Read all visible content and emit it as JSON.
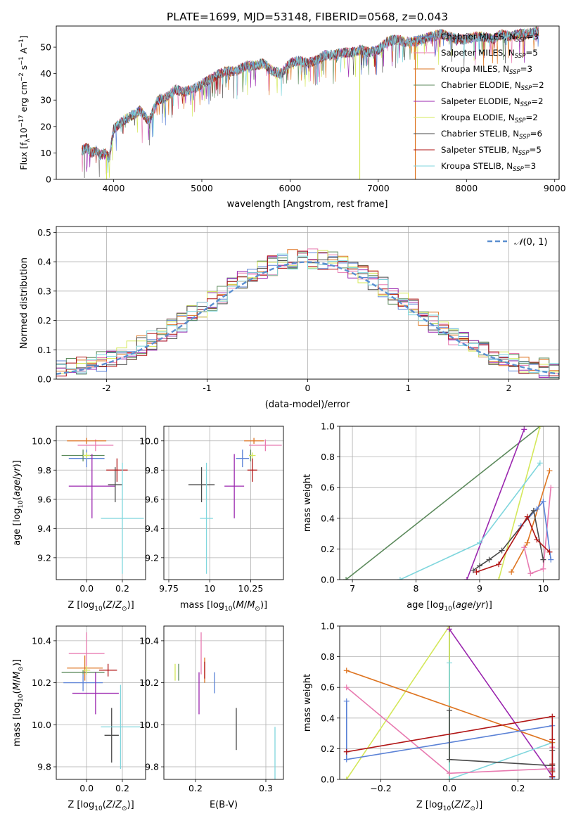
{
  "colors": {
    "chabrier_miles": "#5b82d6",
    "salpeter_miles": "#e87ab0",
    "kroupa_miles": "#de7420",
    "chabrier_elodie": "#5c8a5c",
    "salpeter_elodie": "#9b27af",
    "kroupa_elodie": "#d4e85a",
    "chabrier_stelib": "#4a4a4a",
    "salpeter_stelib": "#b01414",
    "kroupa_stelib": "#7fd6dd",
    "normal": "#5b8fd0",
    "grid": "#b0b0b0"
  },
  "chart_data": [
    {
      "id": "spectrum",
      "type": "line",
      "title": "PLATE=1699, MJD=53148, FIBERID=0568, z=0.043",
      "xlabel": "wavelength [Angstrom, rest frame]",
      "ylabel": "Flux [fλ10⁻¹⁷ erg cm⁻² s⁻¹ A⁻¹]",
      "xlim": [
        3350,
        9050
      ],
      "ylim": [
        0,
        58
      ],
      "xticks": [
        4000,
        5000,
        6000,
        7000,
        8000,
        9000
      ],
      "yticks": [
        0,
        10,
        20,
        30,
        40,
        50
      ],
      "grid": false,
      "legend_position": "right",
      "legend": [
        "Chabrier MILES, N_SSP=3",
        "Salpeter MILES, N_SSP=5",
        "Kroupa MILES, N_SSP=3",
        "Chabrier ELODIE, N_SSP=2",
        "Salpeter ELODIE, N_SSP=2",
        "Kroupa ELODIE, N_SSP=2",
        "Chabrier STELIB, N_SSP=6",
        "Salpeter STELIB, N_SSP=5",
        "Kroupa STELIB, N_SSP=3"
      ],
      "x": [
        3650,
        3700,
        3750,
        3800,
        3850,
        3900,
        3950,
        4000,
        4100,
        4200,
        4300,
        4400,
        4500,
        4600,
        4700,
        4800,
        4900,
        5000,
        5100,
        5200,
        5300,
        5400,
        5500,
        5600,
        5700,
        5800,
        5900,
        6000,
        6100,
        6200,
        6300,
        6400,
        6500,
        6600,
        6700,
        6800,
        6900,
        7000,
        7100,
        7200,
        7300,
        7400,
        7500,
        7600,
        7700,
        7800,
        7900,
        8000,
        8100,
        8200,
        8300,
        8400,
        8500,
        8600,
        8700,
        8800
      ],
      "y": [
        11,
        12,
        10,
        11,
        9,
        10,
        8,
        19,
        22,
        24,
        26,
        22,
        30,
        31,
        34,
        33,
        34,
        36,
        38,
        40,
        41,
        41,
        43,
        43,
        44,
        41,
        40,
        44,
        45,
        44,
        45,
        47,
        47,
        48,
        48,
        49,
        48,
        49,
        52,
        53,
        52,
        52,
        53,
        54,
        55,
        54,
        53,
        53,
        54,
        54,
        53,
        55,
        54,
        55,
        55,
        56
      ],
      "drops": [
        {
          "series": "kroupa_elodie",
          "x": 3920
        },
        {
          "series": "kroupa_elodie",
          "x": 6790
        },
        {
          "series": "kroupa_miles",
          "x": 7420
        }
      ]
    },
    {
      "id": "residuals",
      "type": "line",
      "xlabel": "(data-model)/error",
      "ylabel": "Normed distribution",
      "xlim": [
        -2.5,
        2.5
      ],
      "ylim": [
        0,
        0.52
      ],
      "xticks": [
        -2,
        -1,
        0,
        1,
        2
      ],
      "yticks": [
        0.0,
        0.1,
        0.2,
        0.3,
        0.4,
        0.5
      ],
      "grid": true,
      "legend_position": "top-right",
      "legend": [
        "𝒩(0, 1)"
      ],
      "bin_width": 0.1
    },
    {
      "id": "z_vs_age",
      "type": "scatter",
      "xlabel": "Z [log₁₀(Z/Z⊙)]",
      "ylabel": "age  [log₁₀(age/yr)]",
      "xlim": [
        -0.17,
        0.33
      ],
      "ylim": [
        9.05,
        10.1
      ],
      "xticks": [
        0.0,
        0.2
      ],
      "yticks": [
        9.2,
        9.4,
        9.6,
        9.8,
        10.0
      ],
      "grid": true,
      "points": [
        {
          "series": "chabrier_miles",
          "x": 0.0,
          "dx": 0.1,
          "y": 9.88,
          "dy": 0.06
        },
        {
          "series": "salpeter_miles",
          "x": 0.05,
          "dx": 0.1,
          "y": 9.97,
          "dy": 0.04
        },
        {
          "series": "kroupa_miles",
          "x": 0.0,
          "dx": 0.11,
          "y": 10.0,
          "dy": 0.02
        },
        {
          "series": "chabrier_elodie",
          "x": -0.02,
          "dx": 0.12,
          "y": 9.9,
          "dy": 0.04
        },
        {
          "series": "salpeter_elodie",
          "x": 0.03,
          "dx": 0.13,
          "y": 9.69,
          "dy": 0.22
        },
        {
          "series": "kroupa_elodie",
          "x": 0.0,
          "dx": 0.02,
          "y": 9.9,
          "dy": 0.02
        },
        {
          "series": "chabrier_stelib",
          "x": 0.16,
          "dx": 0.04,
          "y": 9.7,
          "dy": 0.12
        },
        {
          "series": "salpeter_stelib",
          "x": 0.17,
          "dx": 0.06,
          "y": 9.8,
          "dy": 0.08
        },
        {
          "series": "kroupa_stelib",
          "x": 0.2,
          "dx": 0.12,
          "y": 9.47,
          "dy": 0.38
        }
      ]
    },
    {
      "id": "mass_vs_age",
      "type": "scatter",
      "xlabel": "mass [log₁₀(M/M⊙)]",
      "ylabel": "",
      "xlim": [
        9.72,
        10.45
      ],
      "ylim": [
        9.05,
        10.1
      ],
      "xticks": [
        9.75,
        10.0,
        10.25
      ],
      "yticks": [
        9.2,
        9.4,
        9.6,
        9.8,
        10.0
      ],
      "grid": true,
      "points": [
        {
          "series": "chabrier_miles",
          "x": 10.2,
          "dx": 0.04,
          "y": 9.88,
          "dy": 0.06
        },
        {
          "series": "salpeter_miles",
          "x": 10.34,
          "dx": 0.1,
          "y": 9.97,
          "dy": 0.04
        },
        {
          "series": "kroupa_miles",
          "x": 10.27,
          "dx": 0.06,
          "y": 10.0,
          "dy": 0.02
        },
        {
          "series": "chabrier_elodie",
          "x": 10.25,
          "dx": 0.01,
          "y": 9.9,
          "dy": 0.04
        },
        {
          "series": "salpeter_elodie",
          "x": 10.15,
          "dx": 0.06,
          "y": 9.69,
          "dy": 0.22
        },
        {
          "series": "kroupa_elodie",
          "x": 10.26,
          "dx": 0.02,
          "y": 9.9,
          "dy": 0.02
        },
        {
          "series": "chabrier_stelib",
          "x": 9.95,
          "dx": 0.08,
          "y": 9.7,
          "dy": 0.12
        },
        {
          "series": "salpeter_stelib",
          "x": 10.26,
          "dx": 0.03,
          "y": 9.8,
          "dy": 0.08
        },
        {
          "series": "kroupa_stelib",
          "x": 9.98,
          "dx": 0.04,
          "y": 9.47,
          "dy": 0.38
        }
      ]
    },
    {
      "id": "age_vs_weight",
      "type": "line",
      "xlabel": "age  [log₁₀(age/yr)]",
      "ylabel": "mass weight",
      "xlim": [
        6.8,
        10.25
      ],
      "ylim": [
        0,
        1
      ],
      "xticks": [
        7,
        8,
        9,
        10
      ],
      "yticks": [
        0.0,
        0.2,
        0.4,
        0.6,
        0.8,
        1.0
      ],
      "grid": true,
      "series": [
        {
          "key": "chabrier_elodie",
          "x": [
            6.9,
            9.95
          ],
          "y": [
            0.0,
            1.0
          ]
        },
        {
          "key": "salpeter_elodie",
          "x": [
            8.8,
            9.7
          ],
          "y": [
            0.0,
            0.98
          ]
        },
        {
          "key": "kroupa_elodie",
          "x": [
            9.3,
            9.95
          ],
          "y": [
            0.0,
            1.0
          ]
        },
        {
          "key": "kroupa_stelib",
          "x": [
            7.75,
            9.0,
            9.95
          ],
          "y": [
            0.0,
            0.24,
            0.76
          ]
        },
        {
          "key": "kroupa_miles",
          "x": [
            9.5,
            9.75,
            10.1
          ],
          "y": [
            0.05,
            0.24,
            0.71
          ]
        },
        {
          "key": "salpeter_miles",
          "x": [
            9.7,
            9.8,
            10.0,
            10.12
          ],
          "y": [
            0.21,
            0.04,
            0.07,
            0.6
          ]
        },
        {
          "key": "chabrier_miles",
          "x": [
            9.65,
            9.9,
            10.0,
            10.12
          ],
          "y": [
            0.35,
            0.46,
            0.51,
            0.13
          ]
        },
        {
          "key": "chabrier_stelib",
          "x": [
            8.9,
            9.0,
            9.15,
            9.35,
            9.85,
            10.0
          ],
          "y": [
            0.06,
            0.09,
            0.13,
            0.19,
            0.45,
            0.13
          ]
        },
        {
          "key": "salpeter_stelib",
          "x": [
            8.95,
            9.3,
            9.75,
            9.9,
            10.1
          ],
          "y": [
            0.05,
            0.1,
            0.41,
            0.26,
            0.18
          ]
        }
      ]
    },
    {
      "id": "z_vs_mass",
      "type": "scatter",
      "xlabel": "Z [log₁₀(Z/Z⊙)]",
      "ylabel": "mass [log₁₀(M/M⊙)]",
      "xlim": [
        -0.17,
        0.33
      ],
      "ylim": [
        9.74,
        10.47
      ],
      "xticks": [
        0.0,
        0.2
      ],
      "yticks": [
        9.8,
        10.0,
        10.2,
        10.4
      ],
      "grid": true,
      "points": [
        {
          "series": "chabrier_miles",
          "x": -0.02,
          "dx": 0.11,
          "y": 10.2,
          "dy": 0.04
        },
        {
          "series": "salpeter_miles",
          "x": 0.0,
          "dx": 0.1,
          "y": 10.34,
          "dy": 0.1
        },
        {
          "series": "kroupa_miles",
          "x": -0.01,
          "dx": 0.1,
          "y": 10.27,
          "dy": 0.06
        },
        {
          "series": "chabrier_elodie",
          "x": -0.02,
          "dx": 0.12,
          "y": 10.25,
          "dy": 0.01
        },
        {
          "series": "salpeter_elodie",
          "x": 0.05,
          "dx": 0.13,
          "y": 10.15,
          "dy": 0.1
        },
        {
          "series": "kroupa_elodie",
          "x": 0.0,
          "dx": 0.02,
          "y": 10.26,
          "dy": 0.02
        },
        {
          "series": "chabrier_stelib",
          "x": 0.14,
          "dx": 0.04,
          "y": 9.95,
          "dy": 0.13
        },
        {
          "series": "salpeter_stelib",
          "x": 0.12,
          "dx": 0.05,
          "y": 10.26,
          "dy": 0.03
        },
        {
          "series": "kroupa_stelib",
          "x": 0.19,
          "dx": 0.11,
          "y": 9.99,
          "dy": 0.2
        }
      ]
    },
    {
      "id": "ebv_vs_mass",
      "type": "scatter",
      "xlabel": "E(B-V)",
      "ylabel": "",
      "xlim": [
        0.155,
        0.325
      ],
      "ylim": [
        9.74,
        10.47
      ],
      "xticks": [
        0.2,
        0.3
      ],
      "yticks": [
        9.8,
        10.0,
        10.2,
        10.4
      ],
      "grid": true,
      "points": [
        {
          "series": "chabrier_miles",
          "x": 0.227,
          "dx": 0,
          "y": 10.2,
          "dy": 0.05
        },
        {
          "series": "salpeter_miles",
          "x": 0.208,
          "dx": 0,
          "y": 10.34,
          "dy": 0.1
        },
        {
          "series": "kroupa_miles",
          "x": 0.213,
          "dx": 0,
          "y": 10.26,
          "dy": 0.06
        },
        {
          "series": "chabrier_elodie",
          "x": 0.176,
          "dx": 0,
          "y": 10.25,
          "dy": 0.04
        },
        {
          "series": "salpeter_elodie",
          "x": 0.205,
          "dx": 0,
          "y": 10.15,
          "dy": 0.1
        },
        {
          "series": "kroupa_elodie",
          "x": 0.171,
          "dx": 0,
          "y": 10.25,
          "dy": 0.04
        },
        {
          "series": "chabrier_stelib",
          "x": 0.258,
          "dx": 0,
          "y": 9.98,
          "dy": 0.1
        },
        {
          "series": "salpeter_stelib",
          "x": 0.213,
          "dx": 0,
          "y": 10.26,
          "dy": 0.04
        },
        {
          "series": "kroupa_stelib",
          "x": 0.313,
          "dx": 0,
          "y": 9.84,
          "dy": 0.15
        }
      ]
    },
    {
      "id": "z_vs_weight",
      "type": "line",
      "xlabel": "Z [log₁₀(Z/Z⊙)]",
      "ylabel": "mass weight",
      "xlim": [
        -0.32,
        0.32
      ],
      "ylim": [
        0,
        1
      ],
      "xticks": [
        -0.2,
        0.0,
        0.2
      ],
      "yticks": [
        0.0,
        0.2,
        0.4,
        0.6,
        0.8,
        1.0
      ],
      "grid": true,
      "series": [
        {
          "key": "chabrier_elodie",
          "x": [
            0.0,
            0.0
          ],
          "y": [
            0.0,
            1.0
          ]
        },
        {
          "key": "kroupa_elodie",
          "x": [
            -0.3,
            0.0,
            0.0
          ],
          "y": [
            0.0,
            1.0,
            0.0
          ]
        },
        {
          "key": "salpeter_elodie",
          "x": [
            0.0,
            0.3
          ],
          "y": [
            0.98,
            0.02
          ]
        },
        {
          "key": "kroupa_stelib",
          "x": [
            0.0,
            0.0,
            0.3,
            0.3
          ],
          "y": [
            0.76,
            0.0,
            0.24,
            0.1
          ]
        },
        {
          "key": "kroupa_miles",
          "x": [
            -0.3,
            0.3,
            0.3
          ],
          "y": [
            0.71,
            0.24,
            0.05
          ]
        },
        {
          "key": "salpeter_miles",
          "x": [
            -0.3,
            0.0,
            0.3,
            0.3,
            0.3
          ],
          "y": [
            0.6,
            0.04,
            0.07,
            0.21,
            0.08
          ]
        },
        {
          "key": "chabrier_miles",
          "x": [
            -0.3,
            -0.3,
            0.3,
            0.3
          ],
          "y": [
            0.51,
            0.13,
            0.35,
            0.01
          ]
        },
        {
          "key": "chabrier_stelib",
          "x": [
            0.0,
            0.0,
            0.3,
            0.3,
            0.3,
            0.3
          ],
          "y": [
            0.45,
            0.13,
            0.09,
            0.06,
            0.19,
            0.02
          ]
        },
        {
          "key": "salpeter_stelib",
          "x": [
            -0.3,
            0.3,
            0.3,
            0.3,
            0.3,
            0.3
          ],
          "y": [
            0.18,
            0.41,
            0.26,
            0.1,
            0.05,
            0.02
          ]
        }
      ]
    }
  ]
}
